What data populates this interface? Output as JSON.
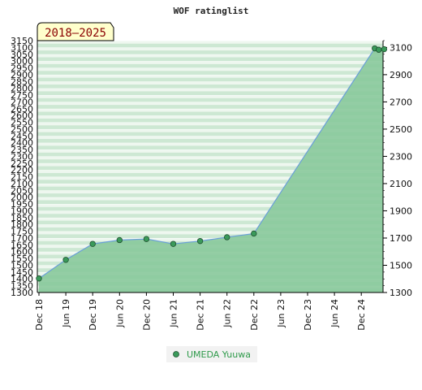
{
  "chart_data": {
    "type": "area",
    "title": "WOF ratinglist",
    "badge": "2018–2025",
    "legend_position": "bottom-center",
    "grid": true,
    "colors": {
      "area_fill": "#86c79a",
      "line": "#6a9fd8",
      "marker": "#3a9a5a",
      "band_light": "#eef7ef",
      "band_dark": "#c9e6cf",
      "badge_bg": "#ffffcc"
    },
    "ylim": [
      1300,
      3150
    ],
    "y_left_ticks": [
      1300,
      1350,
      1400,
      1450,
      1500,
      1550,
      1600,
      1650,
      1700,
      1750,
      1800,
      1850,
      1900,
      1950,
      2000,
      2050,
      2100,
      2150,
      2200,
      2250,
      2300,
      2350,
      2400,
      2450,
      2500,
      2550,
      2600,
      2650,
      2700,
      2750,
      2800,
      2850,
      2900,
      2950,
      3000,
      3050,
      3100,
      3150
    ],
    "y_right_ticks": [
      1300,
      1500,
      1700,
      1900,
      2100,
      2300,
      2500,
      2700,
      2900,
      3100
    ],
    "x_ticks": [
      "Dec 18",
      "Jun 19",
      "Dec 19",
      "Jun 20",
      "Dec 20",
      "Jun 21",
      "Dec 21",
      "Jun 22",
      "Dec 22",
      "Jun 23",
      "Dec 23",
      "Jun 24",
      "Dec 24"
    ],
    "series": [
      {
        "name": "UMEDA Yuuwa",
        "points": [
          {
            "x": 0,
            "y": 1403
          },
          {
            "x": 1,
            "y": 1540
          },
          {
            "x": 2,
            "y": 1657
          },
          {
            "x": 3,
            "y": 1685
          },
          {
            "x": 4,
            "y": 1693
          },
          {
            "x": 5,
            "y": 1657
          },
          {
            "x": 6,
            "y": 1678
          },
          {
            "x": 7,
            "y": 1706
          },
          {
            "x": 8,
            "y": 1733
          },
          {
            "x": 12.5,
            "y": 3093
          },
          {
            "x": 12.65,
            "y": 3083
          },
          {
            "x": 12.85,
            "y": 3087
          }
        ]
      }
    ]
  }
}
